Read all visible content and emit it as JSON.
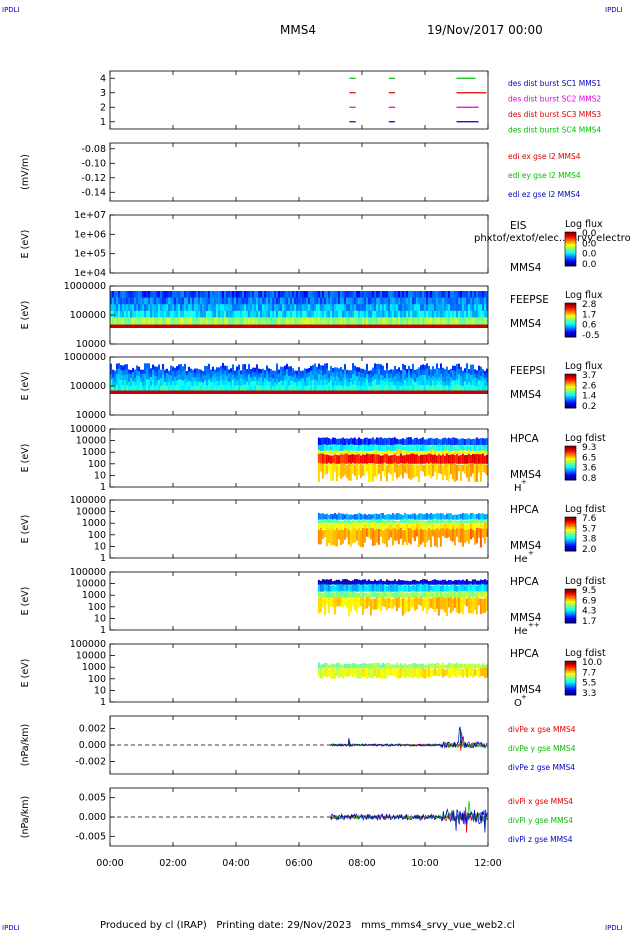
{
  "corner_label": "IPDLI",
  "header": {
    "spacecraft": "MMS4",
    "datetime": "19/Nov/2017 00:00"
  },
  "footer": {
    "produced_by": "Produced by cl (IRAP)",
    "printing_date": "Printing date: 29/Nov/2023",
    "filename": "mms_mms4_srvy_vue_web2.cl"
  },
  "colors": {
    "mms1": "#0000c0",
    "mms2": "#e000e0",
    "mms3": "#e00000",
    "mms4": "#00c000",
    "x": "#e00000",
    "y": "#00c000",
    "z": "#0000c0"
  },
  "chart_data": {
    "type": "multi-panel time series",
    "x_axis": {
      "range": [
        "00:00",
        "12:00"
      ],
      "tick_labels": [
        "00:00",
        "02:00",
        "04:00",
        "06:00",
        "08:00",
        "10:00",
        "12:00"
      ],
      "ticks_hours": [
        0,
        2,
        4,
        6,
        8,
        10,
        12
      ]
    },
    "panels": [
      {
        "id": "burst",
        "type": "timeline",
        "ylabel": "",
        "tick_labels": [
          "4",
          "3",
          "2",
          "1"
        ],
        "ticks": [
          4,
          3,
          2,
          1
        ],
        "ylim": [
          0.5,
          4.5
        ],
        "legend": [
          "des dist burst SC1 MMS1",
          "des dist burst SC2 MMS2",
          "des dist burst SC3 MMS3",
          "des dist burst SC4 MMS4"
        ],
        "series": [
          {
            "level": 1,
            "color_key": "mms1",
            "intervals": [
              [
                7.6,
                7.8
              ],
              [
                8.85,
                9.05
              ],
              [
                11.0,
                11.7
              ]
            ]
          },
          {
            "level": 2,
            "color_key": "mms2",
            "intervals": [
              [
                7.6,
                7.8
              ],
              [
                8.85,
                9.05
              ],
              [
                11.0,
                11.7
              ]
            ]
          },
          {
            "level": 3,
            "color_key": "mms3",
            "intervals": [
              [
                7.6,
                7.8
              ],
              [
                8.85,
                9.05
              ],
              [
                11.0,
                11.95
              ]
            ]
          },
          {
            "level": 4,
            "color_key": "mms4",
            "intervals": [
              [
                7.6,
                7.8
              ],
              [
                8.85,
                9.05
              ],
              [
                11.0,
                11.6
              ]
            ]
          }
        ]
      },
      {
        "id": "edi",
        "type": "line",
        "ylabel": "(mV/m)",
        "tick_labels": [
          "-0.08",
          "-0.10",
          "-0.12",
          "-0.14"
        ],
        "ticks": [
          -0.08,
          -0.1,
          -0.12,
          -0.14
        ],
        "ylim": [
          -0.152,
          -0.072
        ],
        "legend": [
          "edi ex gse l2 MMS4",
          "edi ey gse l2 MMS4",
          "edi ez gse l2 MMS4"
        ],
        "series": []
      },
      {
        "id": "eis",
        "type": "spectrogram",
        "ylabel": "E (eV)",
        "log": true,
        "tick_labels": [
          "1e+07",
          "1e+06",
          "1e+05",
          "1e+04"
        ],
        "ticks": [
          7,
          6,
          5,
          4
        ],
        "ylim": [
          4,
          7
        ],
        "side_labels": [
          "EIS",
          "MMS4"
        ],
        "overlay_text": "phxtof/extof/elec.../srvy electron to",
        "colorbar": {
          "title": "Log flux",
          "labels": [
            "0.0",
            "0.0",
            "0.0",
            "0.0"
          ]
        },
        "coverage_hours": []
      },
      {
        "id": "feeps_e",
        "type": "spectrogram",
        "ylabel": "E (eV)",
        "log": true,
        "tick_labels": [
          "1000000",
          "100000",
          "10000"
        ],
        "ticks": [
          6,
          5,
          4
        ],
        "ylim": [
          4,
          6
        ],
        "side_labels": [
          "FEEPSE",
          "MMS4"
        ],
        "colorbar": {
          "title": "Log flux",
          "labels": [
            "2.8",
            "1.7",
            "0.6",
            "-0.5"
          ]
        },
        "coverage_hours": [
          0,
          12
        ]
      },
      {
        "id": "feeps_i",
        "type": "spectrogram",
        "ylabel": "E (eV)",
        "log": true,
        "tick_labels": [
          "1000000",
          "100000",
          "10000"
        ],
        "ticks": [
          6,
          5,
          4
        ],
        "ylim": [
          4,
          6
        ],
        "side_labels": [
          "FEEPSI",
          "MMS4"
        ],
        "colorbar": {
          "title": "Log flux",
          "labels": [
            "3.7",
            "2.6",
            "1.4",
            "0.2"
          ]
        },
        "coverage_hours": [
          0,
          12
        ]
      },
      {
        "id": "hpca_h",
        "type": "spectrogram",
        "ylabel": "E (eV)",
        "log": true,
        "tick_labels": [
          "100000",
          "10000",
          "1000",
          "100",
          "10",
          "1"
        ],
        "ticks": [
          5,
          4,
          3,
          2,
          1,
          0
        ],
        "ylim": [
          0,
          5
        ],
        "side_labels": [
          "HPCA",
          "MMS4",
          "H+"
        ],
        "colorbar": {
          "title": "Log fdist",
          "labels": [
            "9.3",
            "6.5",
            "3.6",
            "0.8"
          ]
        },
        "coverage_hours": [
          6.6,
          12
        ]
      },
      {
        "id": "hpca_he",
        "type": "spectrogram",
        "ylabel": "E (eV)",
        "log": true,
        "tick_labels": [
          "100000",
          "10000",
          "1000",
          "100",
          "10",
          "1"
        ],
        "ticks": [
          5,
          4,
          3,
          2,
          1,
          0
        ],
        "ylim": [
          0,
          5
        ],
        "side_labels": [
          "HPCA",
          "MMS4",
          "He+"
        ],
        "colorbar": {
          "title": "Log fdist",
          "labels": [
            "7.6",
            "5.7",
            "3.8",
            "2.0"
          ]
        },
        "coverage_hours": [
          6.6,
          12
        ]
      },
      {
        "id": "hpca_he2",
        "type": "spectrogram",
        "ylabel": "E (eV)",
        "log": true,
        "tick_labels": [
          "100000",
          "10000",
          "1000",
          "100",
          "10",
          "1"
        ],
        "ticks": [
          5,
          4,
          3,
          2,
          1,
          0
        ],
        "ylim": [
          0,
          5
        ],
        "side_labels": [
          "HPCA",
          "MMS4",
          "He++"
        ],
        "colorbar": {
          "title": "Log fdist",
          "labels": [
            "9.5",
            "6.9",
            "4.3",
            "1.7"
          ]
        },
        "coverage_hours": [
          6.6,
          12
        ]
      },
      {
        "id": "hpca_o",
        "type": "spectrogram",
        "ylabel": "E (eV)",
        "log": true,
        "tick_labels": [
          "100000",
          "10000",
          "1000",
          "100",
          "10",
          "1"
        ],
        "ticks": [
          5,
          4,
          3,
          2,
          1,
          0
        ],
        "ylim": [
          0,
          5
        ],
        "side_labels": [
          "HPCA",
          "MMS4",
          "O+"
        ],
        "colorbar": {
          "title": "Log fdist",
          "labels": [
            "10.0",
            "7.7",
            "5.5",
            "3.3"
          ]
        },
        "coverage_hours": [
          6.6,
          12
        ]
      },
      {
        "id": "divpe",
        "type": "line",
        "ylabel": "(nPa/km)",
        "tick_labels": [
          "0.002",
          "0.000",
          "-0.002"
        ],
        "ticks": [
          0.002,
          0.0,
          -0.002
        ],
        "ylim": [
          -0.0035,
          0.0035
        ],
        "zero_line": true,
        "legend": [
          "divPe x gse MMS4",
          "divPe y gse MMS4",
          "divPe z gse MMS4"
        ],
        "series": [
          {
            "color_key": "x",
            "start": 7.0,
            "end": 12.0,
            "amp": 0.00012,
            "spikes": [
              [
                7.6,
                0.0007
              ],
              [
                11.15,
                0.0022
              ]
            ]
          },
          {
            "color_key": "y",
            "start": 7.0,
            "end": 12.0,
            "amp": 0.00012,
            "spikes": [
              [
                7.6,
                0.0008
              ],
              [
                11.15,
                0.0018
              ]
            ]
          },
          {
            "color_key": "z",
            "start": 7.0,
            "end": 12.0,
            "amp": 0.00015,
            "spikes": [
              [
                7.6,
                0.001
              ],
              [
                11.1,
                0.0025
              ],
              [
                11.2,
                -0.0018
              ]
            ]
          }
        ]
      },
      {
        "id": "divpi",
        "type": "line",
        "ylabel": "(nPa/km)",
        "tick_labels": [
          "0.005",
          "0.000",
          "-0.005"
        ],
        "ticks": [
          0.005,
          0.0,
          -0.005
        ],
        "ylim": [
          -0.0075,
          0.0075
        ],
        "zero_line": true,
        "legend": [
          "divPi x gse MMS4",
          "divPi y gse MMS4",
          "divPi z gse MMS4"
        ],
        "series": [
          {
            "color_key": "x",
            "start": 7.0,
            "end": 12.0,
            "amp": 0.0004,
            "spikes": [
              [
                11.3,
                0.006
              ],
              [
                11.9,
                0.007
              ]
            ]
          },
          {
            "color_key": "y",
            "start": 7.0,
            "end": 12.0,
            "amp": 0.0005,
            "spikes": [
              [
                11.4,
                0.004
              ],
              [
                11.9,
                -0.004
              ]
            ]
          },
          {
            "color_key": "z",
            "start": 7.0,
            "end": 12.0,
            "amp": 0.0008,
            "spikes": [
              [
                11.0,
                -0.004
              ],
              [
                11.6,
                0.005
              ],
              [
                11.9,
                -0.006
              ]
            ]
          }
        ]
      }
    ]
  }
}
